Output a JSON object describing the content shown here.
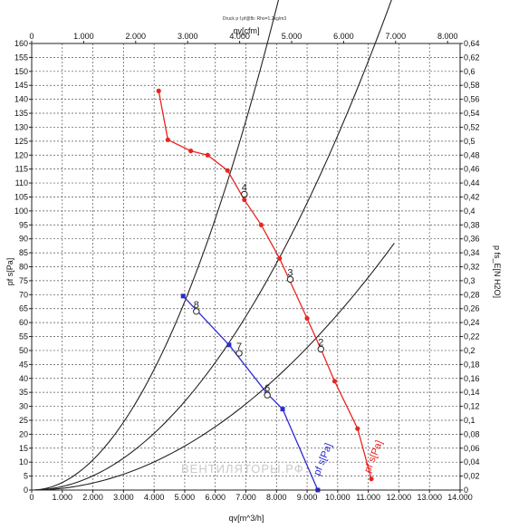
{
  "chart_data": {
    "type": "line",
    "title": "Druck p f.pf@fb: Rho=1,2kg/m3",
    "watermark": "ВЕНТИЛЯТОРЫ.РФ",
    "x_bottom": {
      "label": "qv[m^3/h]",
      "lim": [
        0,
        14000
      ],
      "ticks": [
        0,
        1000,
        2000,
        3000,
        4000,
        5000,
        6000,
        7000,
        8000,
        9000,
        10000,
        11000,
        12000,
        13000,
        14000
      ],
      "tick_labels": [
        "0",
        "1.000",
        "2.000",
        "3.000",
        "4.000",
        "5.000",
        "6.000",
        "7.000",
        "8.000",
        "9.000",
        "10.000",
        "11.000",
        "12.000",
        "13.000",
        "14.000"
      ]
    },
    "x_top": {
      "label": "qv[cfm]",
      "lim": [
        0,
        8240
      ],
      "ticks": [
        0,
        1000,
        2000,
        3000,
        4000,
        5000,
        6000,
        7000,
        8000
      ],
      "tick_labels": [
        "0",
        "1.000",
        "2.000",
        "3.000",
        "4.000",
        "5.000",
        "6.000",
        "7.000",
        "8.000"
      ]
    },
    "y_left": {
      "label": "pf s[Pa]",
      "lim": [
        0,
        160
      ],
      "ticks": [
        0,
        5,
        10,
        15,
        20,
        25,
        30,
        35,
        40,
        45,
        50,
        55,
        60,
        65,
        70,
        75,
        80,
        85,
        90,
        95,
        100,
        105,
        110,
        115,
        120,
        125,
        130,
        135,
        140,
        145,
        150,
        155,
        160
      ],
      "tick_labels": [
        "0",
        "5",
        "10",
        "15",
        "20",
        "25",
        "30",
        "35",
        "40",
        "45",
        "50",
        "55",
        "60",
        "65",
        "70",
        "75",
        "80",
        "85",
        "90",
        "95",
        "100",
        "105",
        "110",
        "115",
        "120",
        "125",
        "130",
        "135",
        "140",
        "145",
        "150",
        "155",
        "160"
      ]
    },
    "y_right": {
      "label": "p fs_E[N H2O]",
      "lim": [
        0,
        0.64
      ],
      "ticks": [
        0,
        0.02,
        0.04,
        0.06,
        0.08,
        0.1,
        0.12,
        0.14,
        0.16,
        0.18,
        0.2,
        0.22,
        0.24,
        0.26,
        0.28,
        0.3,
        0.32,
        0.34,
        0.36,
        0.38,
        0.4,
        0.42,
        0.44,
        0.46,
        0.48,
        0.5,
        0.52,
        0.54,
        0.56,
        0.58,
        0.6,
        0.62,
        0.64
      ],
      "tick_labels": [
        "0",
        "0,02",
        "0,04",
        "0,06",
        "0,08",
        "0,1",
        "0,12",
        "0,14",
        "0,16",
        "0,18",
        "0,2",
        "0,22",
        "0,24",
        "0,26",
        "0,28",
        "0,3",
        "0,32",
        "0,34",
        "0,36",
        "0,38",
        "0,4",
        "0,42",
        "0,44",
        "0,46",
        "0,48",
        "0,5",
        "0,52",
        "0,54",
        "0,56",
        "0,58",
        "0,6",
        "0,62",
        "0,64"
      ]
    },
    "grid": true,
    "series": [
      {
        "name": "pf s[Pa]",
        "color": "#e8251f",
        "marker": "circle",
        "x": [
          4150,
          4450,
          5200,
          5750,
          6400,
          6950,
          7500,
          8100,
          9000,
          9450,
          9900,
          10650,
          11100
        ],
        "y": [
          143,
          125.5,
          121.5,
          120,
          114.5,
          104,
          95,
          83,
          61.5,
          50.5,
          39,
          22,
          4
        ],
        "label_x": 11050,
        "label_y": 6
      },
      {
        "name": "pf s[Pa]",
        "color": "#2b2bd4",
        "marker": "square",
        "x": [
          4950,
          6450,
          7700,
          8200,
          9350
        ],
        "y": [
          69.5,
          52,
          34.5,
          29,
          0
        ],
        "label_x": 9400,
        "label_y": 5
      }
    ],
    "system_curves": [
      {
        "name": "c1",
        "color": "#222222",
        "k": 2.7e-06,
        "x_end": 8200
      },
      {
        "name": "c2",
        "color": "#222222",
        "k": 1.27e-06,
        "x_end": 11900
      },
      {
        "name": "c3",
        "color": "#222222",
        "k": 6.3e-07,
        "x_end": 11850
      }
    ],
    "operating_points": [
      {
        "label": "4",
        "x": 6950,
        "y": 106
      },
      {
        "label": "3",
        "x": 8450,
        "y": 75.5
      },
      {
        "label": "2",
        "x": 9450,
        "y": 50.5
      },
      {
        "label": "8",
        "x": 5380,
        "y": 64
      },
      {
        "label": "7",
        "x": 6780,
        "y": 49
      },
      {
        "label": "6",
        "x": 7700,
        "y": 34
      }
    ]
  }
}
